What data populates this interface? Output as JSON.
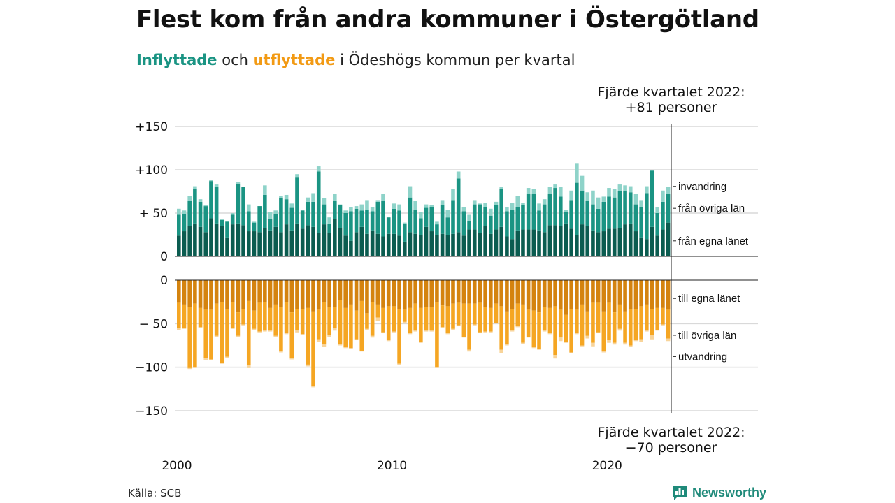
{
  "header": {
    "title": "Flest kom från andra kommuner i Östergötland",
    "subtitle_in": "Inflyttade",
    "subtitle_and": " och ",
    "subtitle_out": "utflyttade",
    "subtitle_rest": " i Ödeshögs kommun per kvartal"
  },
  "colors": {
    "in_own_county": "#0b5c50",
    "in_other_counties": "#1a9483",
    "in_immigration": "#8ed3c9",
    "out_own_county": "#d4830f",
    "out_other_counties": "#f5a623",
    "out_emigration": "#f8d49a",
    "grid": "#d9d9d9",
    "brand": "#1f8a7a"
  },
  "annotations": {
    "top_label": [
      "Fjärde kvartalet 2022:",
      "+81 personer"
    ],
    "bottom_label": [
      "Fjärde kvartalet 2022:",
      "−70 personer"
    ]
  },
  "footer": {
    "source": "Källa: SCB",
    "brand": "Newsworthy"
  },
  "chart_data": [
    {
      "type": "bar",
      "stacked": true,
      "x_tick_labels": [
        "2000",
        "2010",
        "2020"
      ],
      "y_tick_labels": [
        "+150",
        "+100",
        "+ 50",
        "0"
      ],
      "ylim": [
        0,
        150
      ],
      "grid": true,
      "x": [
        "2000 Q1",
        "2000 Q2",
        "2000 Q3",
        "2000 Q4",
        "2001 Q1",
        "2001 Q2",
        "2001 Q3",
        "2001 Q4",
        "2002 Q1",
        "2002 Q2",
        "2002 Q3",
        "2002 Q4",
        "2003 Q1",
        "2003 Q2",
        "2003 Q3",
        "2003 Q4",
        "2004 Q1",
        "2004 Q2",
        "2004 Q3",
        "2004 Q4",
        "2005 Q1",
        "2005 Q2",
        "2005 Q3",
        "2005 Q4",
        "2006 Q1",
        "2006 Q2",
        "2006 Q3",
        "2006 Q4",
        "2007 Q1",
        "2007 Q2",
        "2007 Q3",
        "2007 Q4",
        "2008 Q1",
        "2008 Q2",
        "2008 Q3",
        "2008 Q4",
        "2009 Q1",
        "2009 Q2",
        "2009 Q3",
        "2009 Q4",
        "2010 Q1",
        "2010 Q2",
        "2010 Q3",
        "2010 Q4",
        "2011 Q1",
        "2011 Q2",
        "2011 Q3",
        "2011 Q4",
        "2012 Q1",
        "2012 Q2",
        "2012 Q3",
        "2012 Q4",
        "2013 Q1",
        "2013 Q2",
        "2013 Q3",
        "2013 Q4",
        "2014 Q1",
        "2014 Q2",
        "2014 Q3",
        "2014 Q4",
        "2015 Q1",
        "2015 Q2",
        "2015 Q3",
        "2015 Q4",
        "2016 Q1",
        "2016 Q2",
        "2016 Q3",
        "2016 Q4",
        "2017 Q1",
        "2017 Q2",
        "2017 Q3",
        "2017 Q4",
        "2018 Q1",
        "2018 Q2",
        "2018 Q3",
        "2018 Q4",
        "2019 Q1",
        "2019 Q2",
        "2019 Q3",
        "2019 Q4",
        "2020 Q1",
        "2020 Q2",
        "2020 Q3",
        "2020 Q4",
        "2021 Q1",
        "2021 Q2",
        "2021 Q3",
        "2021 Q4",
        "2022 Q1",
        "2022 Q2",
        "2022 Q3",
        "2022 Q4"
      ],
      "series": [
        {
          "name": "från egna länet",
          "values": [
            24,
            29,
            35,
            38,
            34,
            28,
            44,
            38,
            35,
            22,
            37,
            38,
            36,
            29,
            29,
            28,
            33,
            30,
            34,
            28,
            37,
            30,
            38,
            32,
            36,
            34,
            27,
            37,
            27,
            43,
            33,
            24,
            18,
            28,
            34,
            26,
            30,
            26,
            23,
            26,
            26,
            24,
            17,
            28,
            26,
            25,
            34,
            29,
            25,
            26,
            25,
            26,
            28,
            24,
            31,
            31,
            27,
            35,
            26,
            31,
            34,
            23,
            20,
            30,
            31,
            31,
            31,
            30,
            28,
            36,
            36,
            35,
            38,
            32,
            25,
            37,
            35,
            30,
            28,
            29,
            32,
            32,
            33,
            37,
            38,
            29,
            22,
            20,
            34,
            24,
            31,
            39
          ]
        },
        {
          "name": "från övriga län",
          "values": [
            24,
            20,
            29,
            40,
            29,
            30,
            43,
            42,
            7,
            18,
            11,
            46,
            44,
            23,
            10,
            30,
            38,
            13,
            15,
            39,
            29,
            26,
            53,
            21,
            27,
            29,
            71,
            23,
            11,
            21,
            26,
            26,
            34,
            27,
            19,
            28,
            22,
            37,
            41,
            19,
            29,
            29,
            21,
            40,
            28,
            19,
            22,
            28,
            12,
            33,
            20,
            39,
            62,
            28,
            10,
            29,
            33,
            22,
            21,
            28,
            44,
            29,
            34,
            27,
            28,
            41,
            41,
            23,
            32,
            36,
            43,
            34,
            13,
            33,
            60,
            39,
            29,
            30,
            27,
            34,
            37,
            36,
            42,
            38,
            36,
            31,
            35,
            53,
            65,
            26,
            32,
            33
          ]
        },
        {
          "name": "invandring",
          "values": [
            7,
            4,
            6,
            3,
            3,
            1,
            1,
            3,
            1,
            1,
            2,
            2,
            0,
            8,
            1,
            0,
            11,
            8,
            4,
            3,
            5,
            5,
            4,
            1,
            5,
            10,
            6,
            7,
            7,
            8,
            1,
            3,
            5,
            3,
            7,
            11,
            5,
            2,
            8,
            0,
            6,
            7,
            1,
            13,
            10,
            7,
            4,
            2,
            3,
            6,
            9,
            13,
            8,
            5,
            7,
            5,
            1,
            5,
            8,
            4,
            2,
            5,
            8,
            13,
            3,
            7,
            6,
            8,
            6,
            8,
            4,
            11,
            3,
            11,
            22,
            17,
            10,
            16,
            13,
            6,
            10,
            10,
            8,
            7,
            7,
            12,
            8,
            8,
            1,
            7,
            13,
            8
          ]
        }
      ]
    },
    {
      "type": "bar",
      "stacked": true,
      "y_tick_labels": [
        "0",
        "− 50",
        "−100",
        "−150"
      ],
      "ylim": [
        -150,
        0
      ],
      "grid": true,
      "x": [
        "2000 Q1",
        "2000 Q2",
        "2000 Q3",
        "2000 Q4",
        "2001 Q1",
        "2001 Q2",
        "2001 Q3",
        "2001 Q4",
        "2002 Q1",
        "2002 Q2",
        "2002 Q3",
        "2002 Q4",
        "2003 Q1",
        "2003 Q2",
        "2003 Q3",
        "2003 Q4",
        "2004 Q1",
        "2004 Q2",
        "2004 Q3",
        "2004 Q4",
        "2005 Q1",
        "2005 Q2",
        "2005 Q3",
        "2005 Q4",
        "2006 Q1",
        "2006 Q2",
        "2006 Q3",
        "2006 Q4",
        "2007 Q1",
        "2007 Q2",
        "2007 Q3",
        "2007 Q4",
        "2008 Q1",
        "2008 Q2",
        "2008 Q3",
        "2008 Q4",
        "2009 Q1",
        "2009 Q2",
        "2009 Q3",
        "2009 Q4",
        "2010 Q1",
        "2010 Q2",
        "2010 Q3",
        "2010 Q4",
        "2011 Q1",
        "2011 Q2",
        "2011 Q3",
        "2011 Q4",
        "2012 Q1",
        "2012 Q2",
        "2012 Q3",
        "2012 Q4",
        "2013 Q1",
        "2013 Q2",
        "2013 Q3",
        "2013 Q4",
        "2014 Q1",
        "2014 Q2",
        "2014 Q3",
        "2014 Q4",
        "2015 Q1",
        "2015 Q2",
        "2015 Q3",
        "2015 Q4",
        "2016 Q1",
        "2016 Q2",
        "2016 Q3",
        "2016 Q4",
        "2017 Q1",
        "2017 Q2",
        "2017 Q3",
        "2017 Q4",
        "2018 Q1",
        "2018 Q2",
        "2018 Q3",
        "2018 Q4",
        "2019 Q1",
        "2019 Q2",
        "2019 Q3",
        "2019 Q4",
        "2020 Q1",
        "2020 Q2",
        "2020 Q3",
        "2020 Q4",
        "2021 Q1",
        "2021 Q2",
        "2021 Q3",
        "2021 Q4",
        "2022 Q1",
        "2022 Q2",
        "2022 Q3",
        "2022 Q4"
      ],
      "series": [
        {
          "name": "till egna länet",
          "values": [
            -26,
            -28,
            -31,
            -27,
            -32,
            -34,
            -34,
            -27,
            -25,
            -33,
            -25,
            -37,
            -33,
            -24,
            -35,
            -26,
            -25,
            -32,
            -28,
            -31,
            -25,
            -37,
            -33,
            -33,
            -32,
            -36,
            -34,
            -25,
            -31,
            -31,
            -23,
            -32,
            -28,
            -35,
            -24,
            -38,
            -25,
            -28,
            -32,
            -30,
            -30,
            -33,
            -34,
            -32,
            -27,
            -32,
            -31,
            -31,
            -25,
            -29,
            -30,
            -27,
            -26,
            -27,
            -27,
            -27,
            -26,
            -31,
            -32,
            -27,
            -30,
            -36,
            -33,
            -27,
            -28,
            -34,
            -35,
            -37,
            -31,
            -32,
            -30,
            -34,
            -40,
            -33,
            -34,
            -28,
            -36,
            -26,
            -26,
            -36,
            -26,
            -37,
            -28,
            -36,
            -33,
            -33,
            -30,
            -28,
            -33,
            -32,
            -32,
            -34
          ]
        },
        {
          "name": "till övriga län",
          "values": [
            -29,
            -27,
            -70,
            -73,
            -22,
            -56,
            -57,
            -37,
            -70,
            -55,
            -30,
            -27,
            -18,
            -74,
            -21,
            -33,
            -33,
            -26,
            -36,
            -51,
            -36,
            -53,
            -24,
            -29,
            -65,
            -86,
            -34,
            -49,
            -32,
            -24,
            -51,
            -45,
            -50,
            -33,
            -57,
            -18,
            -39,
            -15,
            -28,
            -39,
            -29,
            -63,
            -14,
            -29,
            -31,
            -39,
            -27,
            -27,
            -75,
            -25,
            -31,
            -29,
            -26,
            -38,
            -53,
            -24,
            -34,
            -28,
            -27,
            -22,
            -50,
            -38,
            -24,
            -26,
            -44,
            -31,
            -42,
            -42,
            -27,
            -29,
            -56,
            -32,
            -31,
            -50,
            -27,
            -47,
            -28,
            -46,
            -34,
            -46,
            -43,
            -35,
            -28,
            -36,
            -42,
            -36,
            -38,
            -30,
            -30,
            -25,
            -19,
            -33
          ]
        },
        {
          "name": "utvandring",
          "values": [
            -2,
            -1,
            -1,
            -1,
            -1,
            -2,
            -1,
            -1,
            -1,
            -1,
            -1,
            -1,
            -1,
            -3,
            -1,
            -1,
            -1,
            -1,
            -1,
            -1,
            -1,
            -1,
            -3,
            -1,
            -2,
            -1,
            -3,
            -3,
            -2,
            -3,
            -1,
            -1,
            -1,
            -1,
            -1,
            -1,
            -2,
            -4,
            -1,
            -1,
            -1,
            -1,
            -2,
            -1,
            -1,
            -1,
            -1,
            -1,
            -1,
            -1,
            -1,
            -1,
            -1,
            -1,
            -2,
            -1,
            -1,
            -1,
            -1,
            -1,
            -4,
            -1,
            -2,
            -1,
            -1,
            -1,
            -1,
            -1,
            -1,
            -1,
            -4,
            -4,
            -1,
            -1,
            -1,
            -1,
            -3,
            -4,
            -1,
            -1,
            -3,
            -2,
            -2,
            -2,
            -2,
            -1,
            -3,
            -1,
            -5,
            -1,
            -1,
            -3
          ]
        }
      ]
    }
  ]
}
